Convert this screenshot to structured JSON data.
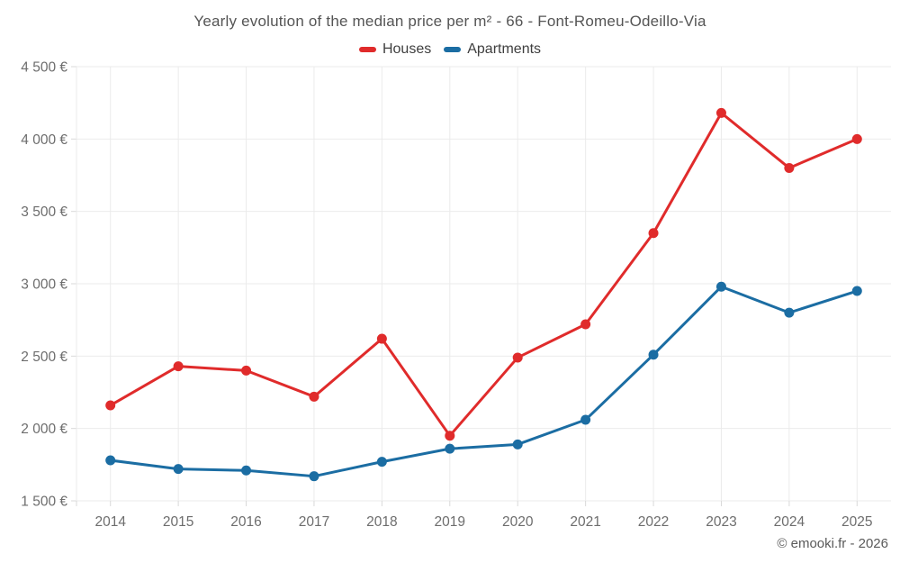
{
  "title": "Yearly evolution of the median price per m² - 66 - Font-Romeu-Odeillo-Via",
  "legend": [
    {
      "label": "Houses",
      "color": "#e02b2b"
    },
    {
      "label": "Apartments",
      "color": "#1b6da3"
    }
  ],
  "attribution": "© emooki.fr - 2026",
  "chart_data": {
    "type": "line",
    "title": "Yearly evolution of the median price per m² - 66 - Font-Romeu-Odeillo-Via",
    "x": [
      "2014",
      "2015",
      "2016",
      "2017",
      "2018",
      "2019",
      "2020",
      "2021",
      "2022",
      "2023",
      "2024",
      "2025"
    ],
    "series": [
      {
        "name": "Houses",
        "color": "#e02b2b",
        "values": [
          2160,
          2430,
          2400,
          2220,
          2620,
          1950,
          2490,
          2720,
          3350,
          4180,
          3800,
          4000
        ]
      },
      {
        "name": "Apartments",
        "color": "#1b6da3",
        "values": [
          1780,
          1720,
          1710,
          1670,
          1770,
          1860,
          1890,
          2060,
          2510,
          2980,
          2800,
          2950
        ]
      }
    ],
    "ylim": [
      1500,
      4500
    ],
    "yticks": [
      4500,
      4000,
      3500,
      3000,
      2500,
      2000,
      1500
    ],
    "ytick_labels": [
      "4 500 €",
      "4 000 €",
      "3 500 €",
      "3 000 €",
      "2 500 €",
      "2 000 €",
      "1 500 €"
    ],
    "currency": "€",
    "grid": true,
    "legend_position": "top",
    "grid_color": "#ebebeb",
    "tick_color": "#d9d9d9",
    "label_color": "#6d6d6d"
  }
}
